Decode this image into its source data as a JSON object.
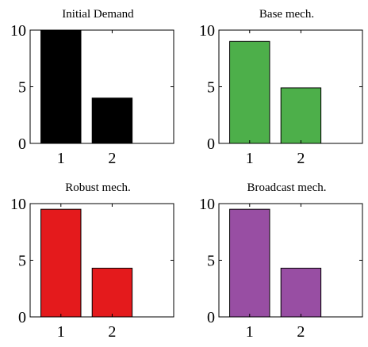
{
  "chart_data": [
    {
      "type": "bar",
      "title": "Initial Demand",
      "categories": [
        "1",
        "2"
      ],
      "values": [
        10,
        4
      ],
      "color": "#000000",
      "xlabel": "",
      "ylabel": "",
      "xlim": [
        0.4,
        3.2
      ],
      "ylim": [
        0,
        10
      ],
      "yticks": [
        "0",
        "5",
        "10"
      ],
      "grid": false
    },
    {
      "type": "bar",
      "title": "Base mech.",
      "categories": [
        "1",
        "2"
      ],
      "values": [
        9.0,
        4.9
      ],
      "color": "#4DAF4A",
      "xlabel": "",
      "ylabel": "",
      "xlim": [
        0.4,
        3.2
      ],
      "ylim": [
        0,
        10
      ],
      "yticks": [
        "0",
        "5",
        "10"
      ],
      "grid": false
    },
    {
      "type": "bar",
      "title": "Robust mech.",
      "categories": [
        "1",
        "2"
      ],
      "values": [
        9.5,
        4.3
      ],
      "color": "#E41A1C",
      "xlabel": "",
      "ylabel": "",
      "xlim": [
        0.4,
        3.2
      ],
      "ylim": [
        0,
        10
      ],
      "yticks": [
        "0",
        "5",
        "10"
      ],
      "grid": false
    },
    {
      "type": "bar",
      "title": "Broadcast mech.",
      "categories": [
        "1",
        "2"
      ],
      "values": [
        9.5,
        4.3
      ],
      "color": "#984EA3",
      "xlabel": "",
      "ylabel": "",
      "xlim": [
        0.4,
        3.2
      ],
      "ylim": [
        0,
        10
      ],
      "yticks": [
        "0",
        "5",
        "10"
      ],
      "grid": false
    }
  ]
}
